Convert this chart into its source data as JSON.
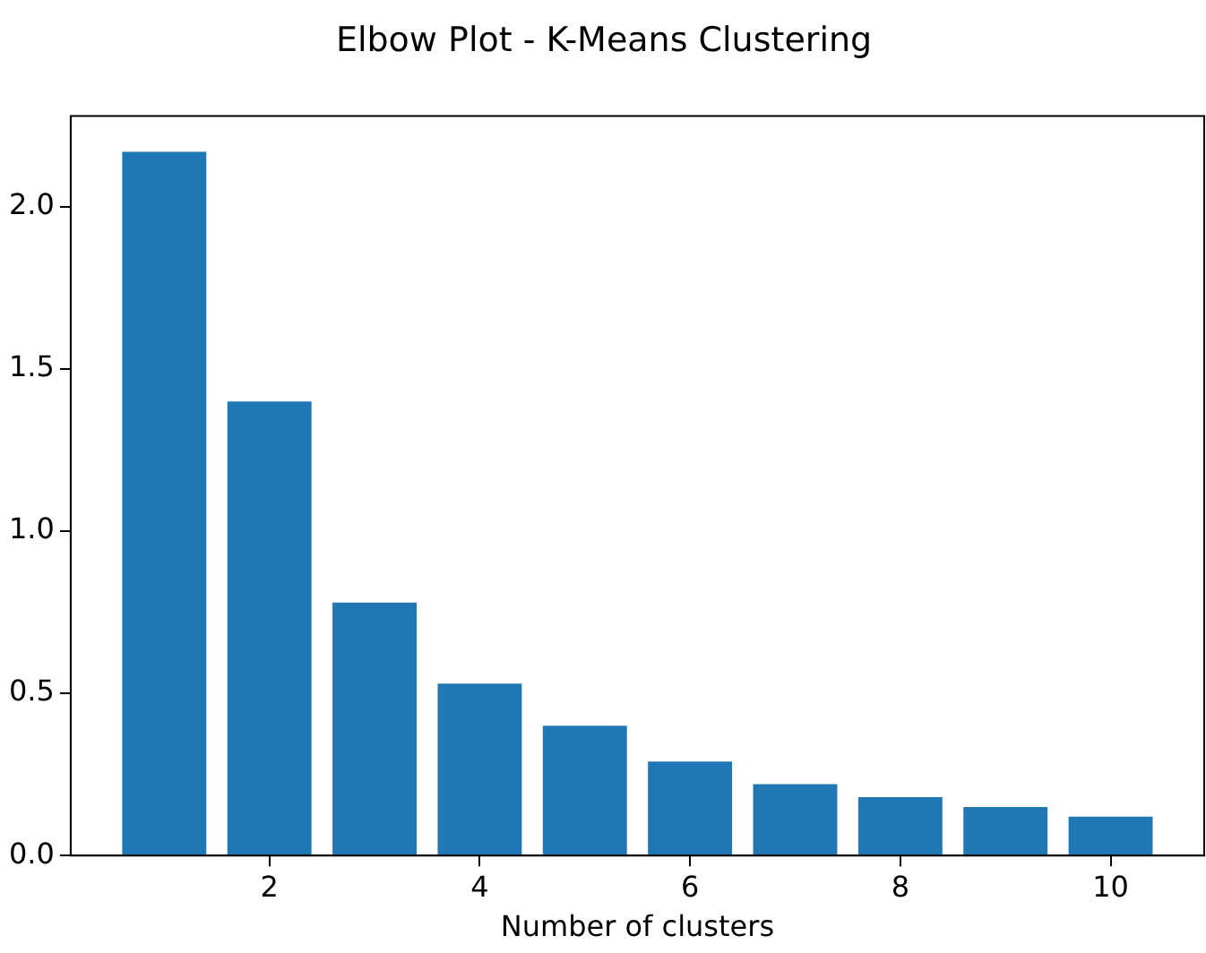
{
  "chart_data": {
    "type": "bar",
    "title": "Elbow Plot - K-Means Clustering",
    "xlabel": "Number of clusters",
    "x": [
      1,
      2,
      3,
      4,
      5,
      6,
      7,
      8,
      9,
      10
    ],
    "values": [
      2.17,
      1.4,
      0.78,
      0.53,
      0.4,
      0.29,
      0.22,
      0.18,
      0.15,
      0.12
    ],
    "color": "#1f77b4",
    "xlim": [
      0.11,
      10.89
    ],
    "xticks": [
      2,
      4,
      6,
      8,
      10
    ],
    "ylim": [
      0,
      2.28
    ],
    "yticks": [
      {
        "value": 0,
        "label": "0.0"
      },
      0.5,
      {
        "value": 1,
        "label": "1.0"
      },
      1.5,
      {
        "value": 2,
        "label": "2.0"
      }
    ],
    "grid": false,
    "legend": false
  }
}
